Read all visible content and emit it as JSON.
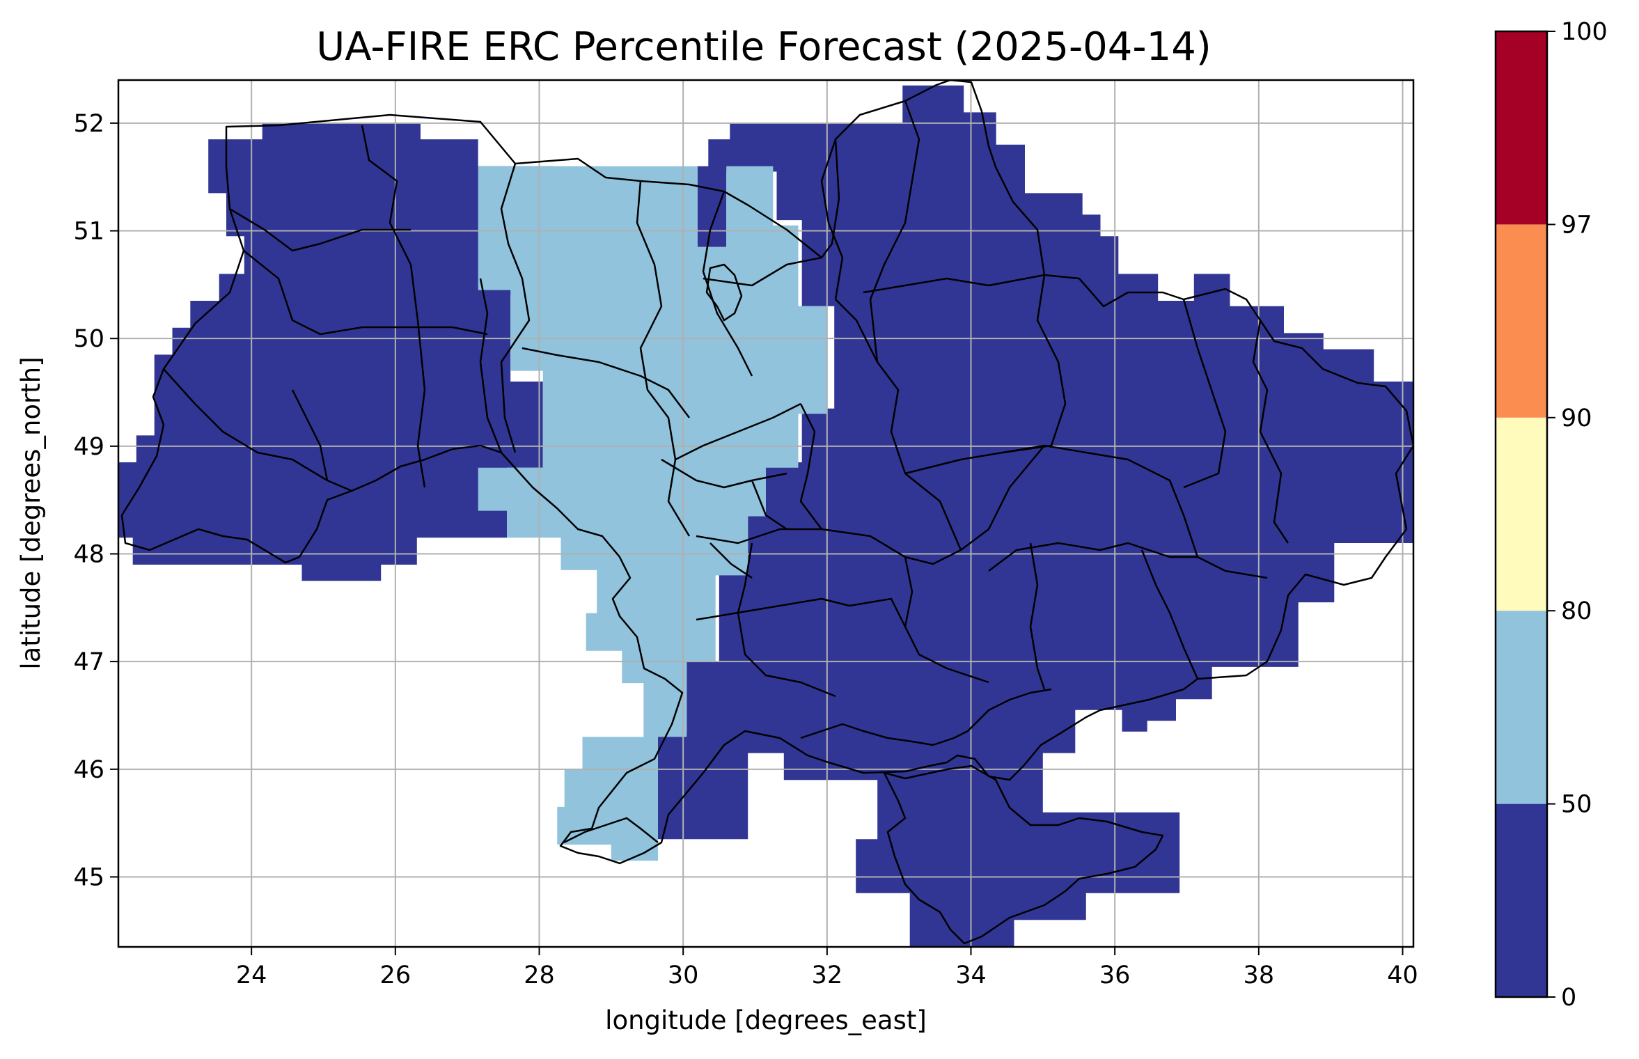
{
  "title": "UA-FIRE ERC Percentile Forecast (2025-04-14)",
  "xlabel": "longitude [degrees_east]",
  "ylabel": "latitude [degrees_north]",
  "colors": {
    "frame": "#000000",
    "grid": "#b0b0b0",
    "background": "#ffffff",
    "border_lines": "#000000"
  },
  "chart_data": {
    "type": "heatmap",
    "title": "UA-FIRE ERC Percentile Forecast (2025-04-14)",
    "xlabel": "longitude [degrees_east]",
    "ylabel": "latitude [degrees_north]",
    "xlim": [
      22.15,
      40.15
    ],
    "ylim": [
      44.35,
      52.4
    ],
    "grid": true,
    "xticks": [
      24,
      26,
      28,
      30,
      32,
      34,
      36,
      38,
      40
    ],
    "yticks": [
      45,
      46,
      47,
      48,
      49,
      50,
      51,
      52
    ],
    "xtick_labels": [
      "24",
      "26",
      "28",
      "30",
      "32",
      "34",
      "36",
      "38",
      "40"
    ],
    "ytick_labels": [
      "45",
      "46",
      "47",
      "48",
      "49",
      "50",
      "51",
      "52"
    ],
    "colorbar": {
      "placement": "right",
      "boundaries": [
        0,
        50,
        80,
        90,
        97,
        100
      ],
      "tick_labels": [
        "0",
        "50",
        "80",
        "90",
        "97",
        "100"
      ],
      "colors": [
        "#313695",
        "#91c3dd",
        "#fefbbd",
        "#fb8d50",
        "#a50026"
      ]
    },
    "series": [
      {
        "category_range": [
          0,
          50
        ],
        "color": "#313695",
        "polygons": [
          [
            [
              24.15,
              52.0
            ],
            [
              26.35,
              52.0
            ],
            [
              26.35,
              51.85
            ],
            [
              27.15,
              51.85
            ],
            [
              27.15,
              51.6
            ],
            [
              30.35,
              51.6
            ],
            [
              30.35,
              51.85
            ],
            [
              30.65,
              51.85
            ],
            [
              30.65,
              52.0
            ],
            [
              33.05,
              52.0
            ],
            [
              33.05,
              52.35
            ],
            [
              33.9,
              52.35
            ],
            [
              33.9,
              52.1
            ],
            [
              34.35,
              52.1
            ],
            [
              34.35,
              51.8
            ],
            [
              34.75,
              51.8
            ],
            [
              34.75,
              51.35
            ],
            [
              35.55,
              51.35
            ],
            [
              35.55,
              51.15
            ],
            [
              35.8,
              51.15
            ],
            [
              35.8,
              50.95
            ],
            [
              36.05,
              50.95
            ],
            [
              36.05,
              50.6
            ],
            [
              36.6,
              50.6
            ],
            [
              36.6,
              50.35
            ],
            [
              37.1,
              50.35
            ],
            [
              37.1,
              50.6
            ],
            [
              37.6,
              50.6
            ],
            [
              37.6,
              50.3
            ],
            [
              38.35,
              50.3
            ],
            [
              38.35,
              50.05
            ],
            [
              38.9,
              50.05
            ],
            [
              38.9,
              49.9
            ],
            [
              39.6,
              49.9
            ],
            [
              39.6,
              49.6
            ],
            [
              40.15,
              49.6
            ],
            [
              40.15,
              48.1
            ],
            [
              39.05,
              48.1
            ],
            [
              39.05,
              47.55
            ],
            [
              38.55,
              47.55
            ],
            [
              38.55,
              46.95
            ],
            [
              37.35,
              46.95
            ],
            [
              37.35,
              46.65
            ],
            [
              36.85,
              46.65
            ],
            [
              36.85,
              46.45
            ],
            [
              36.45,
              46.45
            ],
            [
              36.45,
              46.35
            ],
            [
              36.1,
              46.35
            ],
            [
              36.1,
              46.55
            ],
            [
              35.45,
              46.55
            ],
            [
              35.45,
              46.15
            ],
            [
              35.0,
              46.15
            ],
            [
              35.0,
              45.6
            ],
            [
              36.9,
              45.6
            ],
            [
              36.9,
              44.85
            ],
            [
              35.6,
              44.85
            ],
            [
              35.6,
              44.6
            ],
            [
              34.6,
              44.6
            ],
            [
              34.6,
              44.35
            ],
            [
              33.15,
              44.35
            ],
            [
              33.15,
              44.85
            ],
            [
              32.4,
              44.85
            ],
            [
              32.4,
              45.35
            ],
            [
              32.7,
              45.35
            ],
            [
              32.7,
              45.9
            ],
            [
              31.4,
              45.9
            ],
            [
              31.4,
              46.15
            ],
            [
              30.9,
              46.15
            ],
            [
              30.9,
              45.35
            ],
            [
              29.5,
              45.35
            ],
            [
              29.5,
              46.35
            ],
            [
              30.05,
              46.35
            ],
            [
              30.05,
              47.0
            ],
            [
              30.5,
              47.0
            ],
            [
              30.5,
              47.9
            ],
            [
              30.9,
              47.9
            ],
            [
              30.9,
              48.35
            ],
            [
              31.15,
              48.35
            ],
            [
              31.15,
              48.85
            ],
            [
              31.65,
              48.85
            ],
            [
              31.65,
              49.35
            ],
            [
              32.1,
              49.35
            ],
            [
              32.1,
              50.3
            ],
            [
              31.65,
              50.3
            ],
            [
              31.65,
              51.1
            ],
            [
              31.3,
              51.1
            ],
            [
              31.3,
              51.55
            ],
            [
              30.6,
              51.55
            ],
            [
              30.6,
              50.85
            ],
            [
              30.2,
              50.85
            ],
            [
              30.2,
              51.6
            ],
            [
              28.2,
              51.6
            ],
            [
              28.2,
              50.4
            ],
            [
              27.6,
              50.4
            ],
            [
              27.6,
              49.6
            ],
            [
              28.05,
              49.6
            ],
            [
              28.05,
              48.8
            ],
            [
              27.55,
              48.8
            ],
            [
              27.55,
              48.15
            ],
            [
              26.3,
              48.15
            ],
            [
              26.3,
              47.9
            ],
            [
              25.8,
              47.9
            ],
            [
              25.8,
              47.75
            ],
            [
              24.7,
              47.75
            ],
            [
              24.7,
              47.9
            ],
            [
              22.35,
              47.9
            ],
            [
              22.35,
              48.15
            ],
            [
              22.15,
              48.15
            ],
            [
              22.15,
              48.85
            ],
            [
              22.4,
              48.85
            ],
            [
              22.4,
              49.1
            ],
            [
              22.65,
              49.1
            ],
            [
              22.65,
              49.85
            ],
            [
              22.9,
              49.85
            ],
            [
              22.9,
              50.1
            ],
            [
              23.15,
              50.1
            ],
            [
              23.15,
              50.35
            ],
            [
              23.55,
              50.35
            ],
            [
              23.55,
              50.6
            ],
            [
              23.9,
              50.6
            ],
            [
              23.9,
              50.95
            ],
            [
              23.65,
              50.95
            ],
            [
              23.65,
              51.35
            ],
            [
              23.4,
              51.35
            ],
            [
              23.4,
              51.85
            ],
            [
              24.15,
              51.85
            ]
          ]
        ]
      },
      {
        "category_range": [
          50,
          80
        ],
        "color": "#91c3dd",
        "polygons": [
          [
            [
              27.15,
              51.6
            ],
            [
              27.15,
              50.45
            ],
            [
              27.6,
              50.45
            ],
            [
              27.6,
              49.7
            ],
            [
              28.05,
              49.7
            ],
            [
              28.05,
              48.8
            ],
            [
              27.15,
              48.8
            ],
            [
              27.15,
              48.4
            ],
            [
              27.55,
              48.4
            ],
            [
              27.55,
              48.15
            ],
            [
              28.3,
              48.15
            ],
            [
              28.3,
              47.85
            ],
            [
              28.8,
              47.85
            ],
            [
              28.8,
              47.45
            ],
            [
              28.65,
              47.45
            ],
            [
              28.65,
              47.1
            ],
            [
              29.15,
              47.1
            ],
            [
              29.15,
              46.8
            ],
            [
              29.45,
              46.8
            ],
            [
              29.45,
              46.3
            ],
            [
              28.6,
              46.3
            ],
            [
              28.6,
              46.0
            ],
            [
              28.35,
              46.0
            ],
            [
              28.35,
              45.65
            ],
            [
              28.25,
              45.65
            ],
            [
              28.25,
              45.3
            ],
            [
              29.0,
              45.3
            ],
            [
              29.0,
              45.15
            ],
            [
              29.65,
              45.15
            ],
            [
              29.65,
              46.3
            ],
            [
              30.05,
              46.3
            ],
            [
              30.05,
              47.0
            ],
            [
              30.45,
              47.0
            ],
            [
              30.45,
              47.8
            ],
            [
              30.9,
              47.8
            ],
            [
              30.9,
              48.35
            ],
            [
              31.15,
              48.35
            ],
            [
              31.15,
              48.8
            ],
            [
              31.6,
              48.8
            ],
            [
              31.6,
              49.3
            ],
            [
              32.0,
              49.3
            ],
            [
              32.0,
              50.3
            ],
            [
              31.6,
              50.3
            ],
            [
              31.6,
              51.05
            ],
            [
              31.25,
              51.05
            ],
            [
              31.25,
              51.6
            ],
            [
              30.6,
              51.6
            ],
            [
              30.6,
              50.85
            ],
            [
              30.2,
              50.85
            ],
            [
              30.2,
              51.6
            ],
            [
              28.2,
              51.6
            ]
          ]
        ]
      }
    ]
  }
}
